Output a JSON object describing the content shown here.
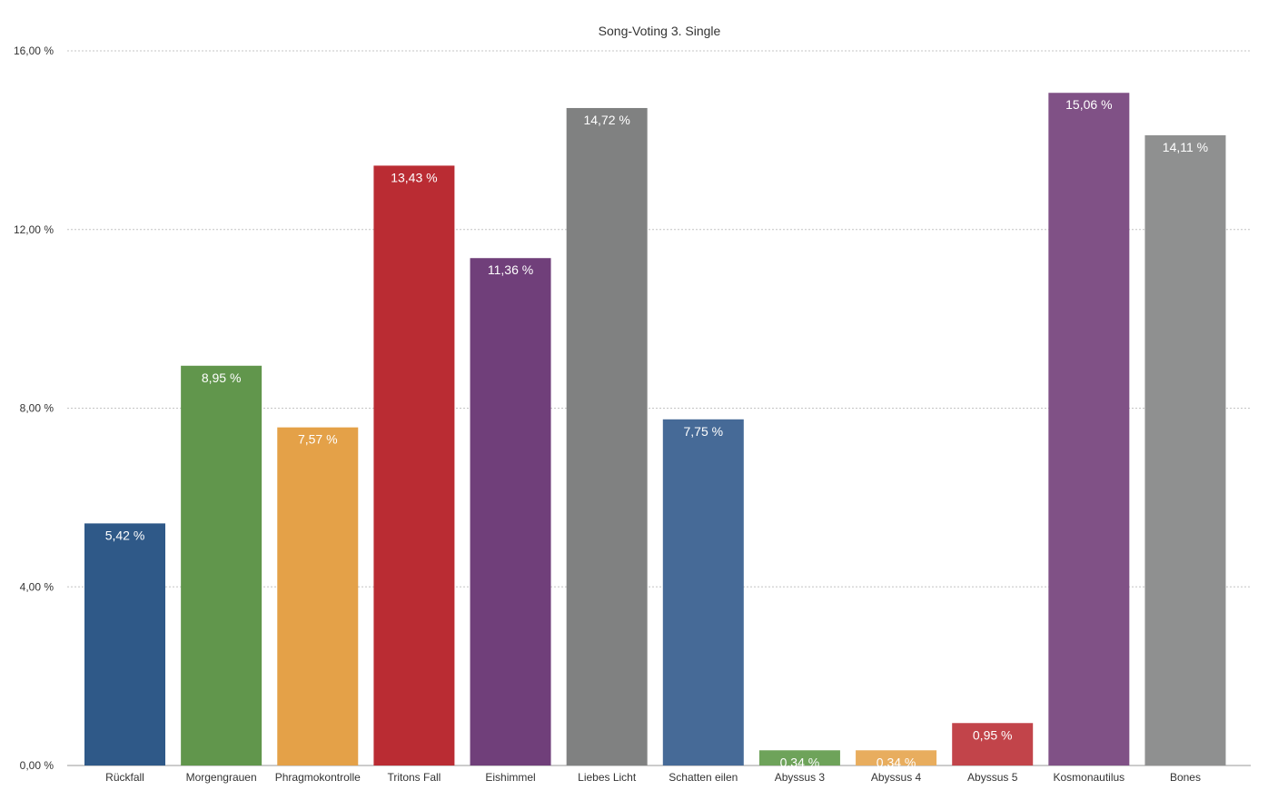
{
  "chart_data": {
    "type": "bar",
    "title": "Song-Voting 3. Single",
    "xlabel": "",
    "ylabel": "",
    "ylim": [
      0,
      16
    ],
    "grid": true,
    "legend": "none",
    "y_ticks": [
      {
        "value": 0,
        "label": "0,00 %"
      },
      {
        "value": 4,
        "label": "4,00 %"
      },
      {
        "value": 8,
        "label": "8,00 %"
      },
      {
        "value": 12,
        "label": "12,00 %"
      },
      {
        "value": 16,
        "label": "16,00 %"
      }
    ],
    "categories": [
      "Rückfall",
      "Morgengrauen",
      "Phragmokontrolle",
      "Tritons Fall",
      "Eishimmel",
      "Liebes Licht",
      "Schatten eilen",
      "Abyssus 3",
      "Abyssus 4",
      "Abyssus 5",
      "Kosmonautilus",
      "Bones"
    ],
    "values": [
      5.42,
      8.95,
      7.57,
      13.43,
      11.36,
      14.72,
      7.75,
      0.34,
      0.34,
      0.95,
      15.06,
      14.11
    ],
    "value_labels": [
      "5,42 %",
      "8,95 %",
      "7,57 %",
      "13,43 %",
      "11,36 %",
      "14,72 %",
      "7,75 %",
      "0,34 %",
      "0,34 %",
      "0,95 %",
      "15,06 %",
      "14,11 %"
    ],
    "colors": [
      "#2f5988",
      "#61964c",
      "#e4a148",
      "#ba2c33",
      "#703f7a",
      "#808181",
      "#466a97",
      "#6ea35a",
      "#e8ad5e",
      "#c2444a",
      "#805186",
      "#8f9090"
    ]
  }
}
